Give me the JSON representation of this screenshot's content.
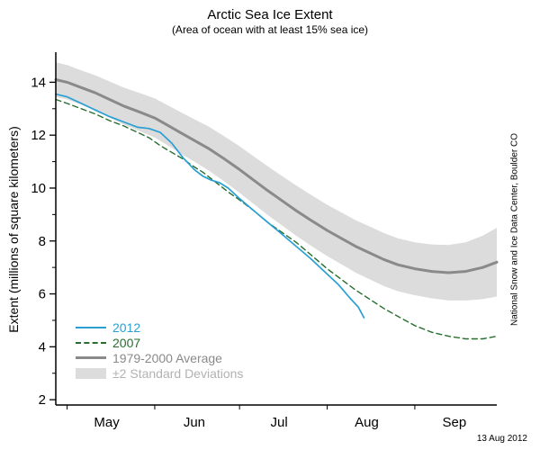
{
  "chart_data": {
    "type": "line",
    "title": "Arctic Sea Ice Extent",
    "subtitle": "(Area of ocean with at least 15% sea ice)",
    "ylabel": "Extent (millions of square kilometers)",
    "ylim": [
      1.8,
      15.0
    ],
    "yticks": [
      2,
      4,
      6,
      8,
      10,
      12,
      14
    ],
    "yticks_minor": [
      3,
      5,
      7,
      9,
      11,
      13
    ],
    "x_unit": "day of year",
    "x_domain_days": [
      117,
      273
    ],
    "month_labels": [
      "May",
      "Jun",
      "Jul",
      "Aug",
      "Sep"
    ],
    "month_label_days": [
      135,
      166,
      196,
      227,
      258
    ],
    "month_start_days": [
      121,
      152,
      182,
      213,
      244
    ],
    "grid": false,
    "legend_position": "lower-left-inside",
    "series": [
      {
        "name": "2012",
        "color": "#2a9fd4",
        "style": "solid",
        "width": 1.7,
        "x": [
          117,
          121,
          126,
          131,
          136,
          141,
          146,
          150,
          154,
          158,
          162,
          166,
          169,
          172,
          175,
          178,
          182,
          187,
          192,
          196,
          202,
          207,
          213,
          217,
          221,
          224,
          226
        ],
        "y": [
          13.55,
          13.45,
          13.2,
          12.95,
          12.7,
          12.5,
          12.3,
          12.25,
          12.1,
          11.7,
          11.15,
          10.7,
          10.45,
          10.3,
          10.2,
          10.0,
          9.6,
          9.15,
          8.7,
          8.35,
          7.8,
          7.35,
          6.75,
          6.35,
          5.85,
          5.5,
          5.1
        ]
      },
      {
        "name": "2007",
        "color": "#276e2e",
        "style": "dashed",
        "width": 1.4,
        "x": [
          117,
          121,
          126,
          131,
          136,
          141,
          146,
          150,
          154,
          158,
          162,
          166,
          169,
          172,
          175,
          178,
          182,
          187,
          192,
          196,
          202,
          207,
          213,
          218,
          223,
          228,
          233,
          238,
          244,
          250,
          256,
          262,
          268,
          273
        ],
        "y": [
          13.35,
          13.2,
          13.0,
          12.8,
          12.55,
          12.35,
          12.1,
          11.9,
          11.6,
          11.35,
          11.1,
          10.8,
          10.6,
          10.35,
          10.1,
          9.85,
          9.55,
          9.15,
          8.7,
          8.4,
          7.95,
          7.5,
          6.95,
          6.55,
          6.15,
          5.8,
          5.45,
          5.15,
          4.8,
          4.55,
          4.4,
          4.3,
          4.3,
          4.4
        ]
      },
      {
        "name": "1979-2000 Average",
        "color": "#8a8a8a",
        "style": "solid",
        "width": 3,
        "x": [
          117,
          121,
          126,
          131,
          136,
          141,
          146,
          152,
          157,
          161,
          166,
          171,
          176,
          182,
          187,
          192,
          196,
          202,
          207,
          213,
          218,
          223,
          228,
          233,
          238,
          244,
          250,
          256,
          262,
          268,
          273
        ],
        "y": [
          14.1,
          14.0,
          13.8,
          13.6,
          13.35,
          13.1,
          12.9,
          12.65,
          12.35,
          12.1,
          11.8,
          11.5,
          11.15,
          10.7,
          10.3,
          9.9,
          9.6,
          9.15,
          8.8,
          8.4,
          8.1,
          7.8,
          7.55,
          7.3,
          7.1,
          6.95,
          6.85,
          6.8,
          6.85,
          7.0,
          7.2
        ]
      }
    ],
    "band": {
      "name": "±2 Standard Deviations",
      "color": "#dcdcdc",
      "x": [
        117,
        121,
        126,
        131,
        136,
        141,
        146,
        152,
        157,
        161,
        166,
        171,
        176,
        182,
        187,
        192,
        196,
        202,
        207,
        213,
        218,
        223,
        228,
        233,
        238,
        244,
        250,
        256,
        262,
        268,
        273
      ],
      "upper": [
        14.75,
        14.65,
        14.45,
        14.26,
        14.03,
        13.8,
        13.62,
        13.39,
        13.11,
        12.88,
        12.6,
        12.33,
        12.0,
        11.58,
        11.2,
        10.82,
        10.53,
        10.1,
        9.76,
        9.37,
        9.08,
        8.79,
        8.55,
        8.3,
        8.1,
        7.95,
        7.87,
        7.85,
        7.95,
        8.2,
        8.5
      ],
      "lower": [
        13.45,
        13.35,
        13.15,
        12.94,
        12.67,
        12.4,
        12.18,
        11.91,
        11.59,
        11.32,
        11.0,
        10.67,
        10.3,
        9.82,
        9.4,
        8.98,
        8.67,
        8.2,
        7.84,
        7.43,
        7.12,
        6.81,
        6.55,
        6.3,
        6.1,
        5.95,
        5.83,
        5.75,
        5.75,
        5.8,
        5.9
      ]
    }
  },
  "legend": {
    "items": [
      {
        "label": "2012",
        "color": "#2a9fd4",
        "swatch": "line-solid"
      },
      {
        "label": "2007",
        "color": "#276e2e",
        "swatch": "line-dashed"
      },
      {
        "label": "1979-2000 Average",
        "color": "#8a8a8a",
        "swatch": "line-thick"
      },
      {
        "label": "±2 Standard Deviations",
        "color": "#b2b2b2",
        "swatch": "box",
        "box_color": "#dcdcdc"
      }
    ]
  },
  "annotations": {
    "credit": "National Snow and Ice Data Center, Boulder CO",
    "date": "13 Aug 2012"
  }
}
